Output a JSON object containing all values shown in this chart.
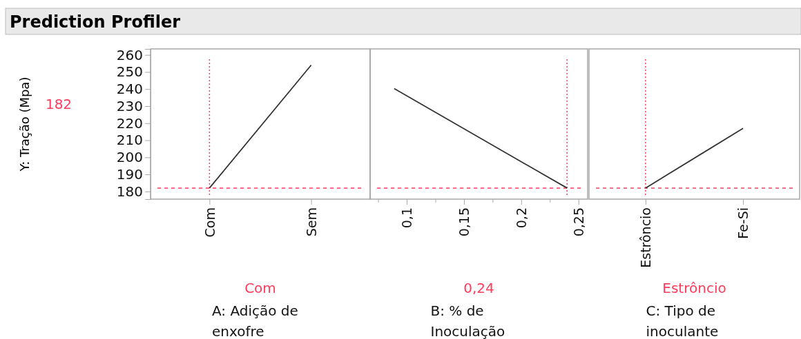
{
  "chart_data": [
    {
      "type": "line",
      "title": "Prediction Profiler",
      "ylabel": "Y: Tração (Mpa)",
      "xlabel": "A: Adição de enxofre",
      "annotations": [
        "182",
        "Com"
      ],
      "categories": [
        "Com",
        "Sem"
      ],
      "series": [
        {
          "color": "#333333",
          "values": [
            182,
            254
          ]
        }
      ],
      "ylim": [
        175.5,
        263.5
      ],
      "yticks": [
        180,
        190,
        200,
        210,
        220,
        230,
        240,
        250,
        260
      ],
      "ref_lines": [
        {
          "axis": "y",
          "value": 182,
          "color": "#ff3b5c",
          "line_style": "dashed"
        },
        {
          "axis": "x",
          "value": "Com",
          "color": "#ff3b5c",
          "line_style": "dotted"
        }
      ]
    },
    {
      "type": "line",
      "xlabel": "B: % de Inoculação",
      "annotations": [
        "0,24"
      ],
      "x": [
        0.089,
        0.24
      ],
      "series": [
        {
          "color": "#333333",
          "values": [
            240.3,
            182
          ]
        }
      ],
      "xlim": [
        0.068,
        0.258
      ],
      "xticks": [
        {
          "value": 0.075,
          "label": null
        },
        {
          "value": 0.1,
          "label": "0,1"
        },
        {
          "value": 0.125,
          "label": null
        },
        {
          "value": 0.15,
          "label": "0,15"
        },
        {
          "value": 0.175,
          "label": null
        },
        {
          "value": 0.2,
          "label": "0,2"
        },
        {
          "value": 0.225,
          "label": null
        },
        {
          "value": 0.25,
          "label": "0,25"
        }
      ],
      "ylim": [
        175.5,
        263.5
      ],
      "tick_labels": "x",
      "ref_lines": [
        {
          "axis": "y",
          "value": 182,
          "color": "#ff3b5c",
          "line_style": "dashed"
        },
        {
          "axis": "x",
          "value": 0.24,
          "color": "#ff3b5c",
          "line_style": "dotted"
        }
      ]
    },
    {
      "type": "line",
      "xlabel": "C: Tipo de inoculante",
      "annotations": [
        "Estrôncio"
      ],
      "categories": [
        "Estrôncio",
        "Fe-Si"
      ],
      "series": [
        {
          "color": "#333333",
          "values": [
            182,
            217
          ]
        }
      ],
      "ylim": [
        175.5,
        263.5
      ],
      "tick_labels": "x",
      "ref_lines": [
        {
          "axis": "y",
          "value": 182,
          "color": "#ff3b5c",
          "line_style": "dashed"
        },
        {
          "axis": "x",
          "value": "Estrôncio",
          "color": "#ff3b5c",
          "line_style": "dotted"
        }
      ]
    }
  ]
}
